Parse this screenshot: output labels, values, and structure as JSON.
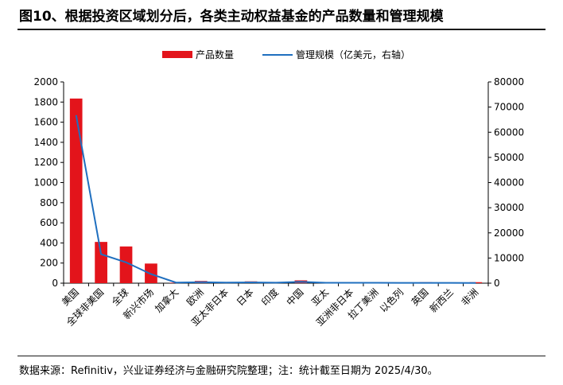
{
  "header": {
    "title": "图10、根据投资区域划分后，各类主动权益基金的产品数量和管理规模"
  },
  "footer": {
    "source": "数据来源：Refinitiv，兴业证券经济与金融研究院整理；注：统计截至日期为 2025/4/30。"
  },
  "colors": {
    "bar": "#e3141b",
    "line": "#1f6fbf"
  },
  "chart_data": {
    "type": "bar",
    "title": "图10、根据投资区域划分后，各类主动权益基金的产品数量和管理规模",
    "categories": [
      "美国",
      "全球非美国",
      "全球",
      "新兴市场",
      "加拿大",
      "欧洲",
      "亚太非日本",
      "日本",
      "印度",
      "中国",
      "亚太",
      "亚洲非日本",
      "拉丁美洲",
      "以色列",
      "英国",
      "新西兰",
      "非洲"
    ],
    "series": [
      {
        "name": "产品数量",
        "type": "bar",
        "axis": "left",
        "values": [
          1835,
          410,
          365,
          195,
          5,
          22,
          12,
          18,
          12,
          28,
          10,
          10,
          10,
          8,
          10,
          8,
          10
        ]
      },
      {
        "name": "管理规模（亿美元，右轴）",
        "type": "line",
        "axis": "right",
        "values": [
          66800,
          11500,
          8300,
          3600,
          250,
          400,
          250,
          300,
          200,
          550,
          150,
          150,
          150,
          100,
          100,
          100,
          80
        ]
      }
    ],
    "yticks_left": [
      0,
      200,
      400,
      600,
      800,
      1000,
      1200,
      1400,
      1600,
      1800,
      2000
    ],
    "yticks_right": [
      0,
      10000,
      20000,
      30000,
      40000,
      50000,
      60000,
      70000,
      80000
    ],
    "ylim_left": [
      0,
      2000
    ],
    "ylim_right": [
      0,
      80000
    ],
    "legend": [
      "产品数量",
      "管理规模（亿美元，右轴）"
    ],
    "legend_position": "top-center",
    "grid": false
  }
}
